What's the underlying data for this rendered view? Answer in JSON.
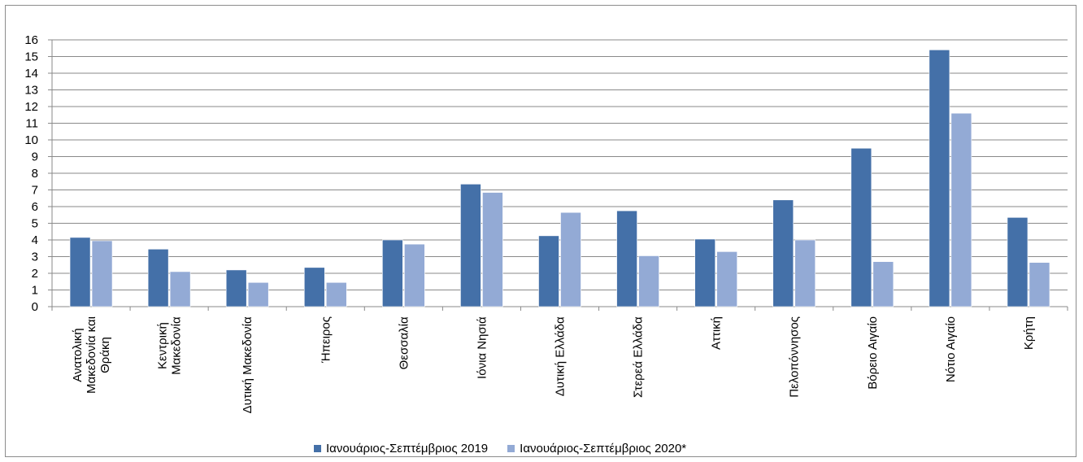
{
  "chart_data": {
    "type": "bar",
    "categories": [
      [
        "Ανατολική",
        "Μακεδονία και",
        "Θράκη"
      ],
      [
        "Κεντρική",
        "Μακεδονία"
      ],
      [
        "Δυτική Μακεδονία"
      ],
      [
        "Ήπειρος"
      ],
      [
        "Θεσσαλία"
      ],
      [
        "Ιόνια Νησιά"
      ],
      [
        "Δυτική Ελλάδα"
      ],
      [
        "Στερεά Ελλάδα"
      ],
      [
        "Αττική"
      ],
      [
        "Πελοπόννησος"
      ],
      [
        "Βόρειο Αιγαίο"
      ],
      [
        "Νότιο Αιγαίο"
      ],
      [
        "Κρήτη"
      ]
    ],
    "series": [
      {
        "name": "Ιανουάριος-Σεπτέμβριος 2019",
        "color": "#4470A8",
        "values": [
          4.15,
          3.45,
          2.2,
          2.35,
          4.0,
          7.35,
          4.25,
          5.75,
          4.05,
          6.4,
          9.5,
          15.4,
          5.35
        ]
      },
      {
        "name": "Ιανουάριος-Σεπτέμβριος 2020*",
        "color": "#93AAD5",
        "values": [
          3.95,
          2.1,
          1.45,
          1.45,
          3.75,
          6.85,
          5.65,
          3.05,
          3.3,
          4.0,
          2.7,
          11.6,
          2.65
        ]
      }
    ],
    "title": "",
    "xlabel": "",
    "ylabel": "",
    "ylim": [
      0,
      16
    ],
    "yticks": [
      "0",
      "1",
      "2",
      "3",
      "4",
      "5",
      "6",
      "7",
      "8",
      "9",
      "10",
      "11",
      "12",
      "13",
      "14",
      "15",
      "16"
    ],
    "grid": true,
    "legend_position": "bottom"
  }
}
